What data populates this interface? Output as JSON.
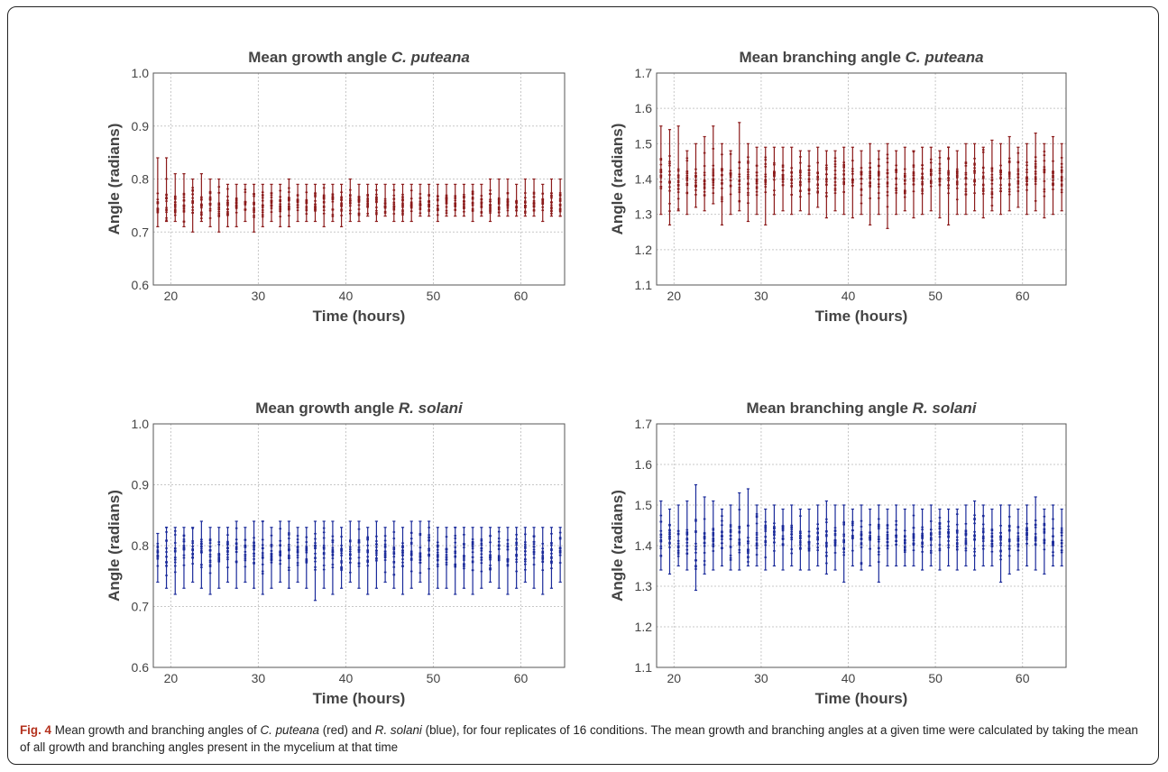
{
  "chart_data": [
    {
      "type": "scatter",
      "title_prefix": "Mean growth angle",
      "title_species": "C. puteana",
      "xlabel": "Time (hours)",
      "ylabel": "Angle (radians)",
      "xlim": [
        18,
        65
      ],
      "ylim": [
        0.6,
        1.0
      ],
      "xticks": [
        20,
        30,
        40,
        50,
        60
      ],
      "yticks": [
        "0.6",
        "0.7",
        "0.8",
        "0.9",
        "1.0"
      ],
      "grid": true,
      "color": "#8b1a1a",
      "x": [
        18.5,
        19.5,
        20.5,
        21.5,
        22.5,
        23.5,
        24.5,
        25.5,
        26.5,
        27.5,
        28.5,
        29.5,
        30.5,
        31.5,
        32.5,
        33.5,
        34.5,
        35.5,
        36.5,
        37.5,
        38.5,
        39.5,
        40.5,
        41.5,
        42.5,
        43.5,
        44.5,
        45.5,
        46.5,
        47.5,
        48.5,
        49.5,
        50.5,
        51.5,
        52.5,
        53.5,
        54.5,
        55.5,
        56.5,
        57.5,
        58.5,
        59.5,
        60.5,
        61.5,
        62.5,
        63.5,
        64.5
      ],
      "low": [
        0.71,
        0.72,
        0.72,
        0.71,
        0.7,
        0.72,
        0.71,
        0.7,
        0.71,
        0.71,
        0.72,
        0.7,
        0.71,
        0.72,
        0.71,
        0.71,
        0.72,
        0.72,
        0.72,
        0.71,
        0.72,
        0.71,
        0.72,
        0.72,
        0.73,
        0.72,
        0.73,
        0.72,
        0.72,
        0.72,
        0.73,
        0.73,
        0.72,
        0.73,
        0.73,
        0.73,
        0.72,
        0.73,
        0.72,
        0.73,
        0.73,
        0.73,
        0.73,
        0.73,
        0.72,
        0.73,
        0.73
      ],
      "high": [
        0.84,
        0.84,
        0.81,
        0.81,
        0.8,
        0.81,
        0.8,
        0.8,
        0.79,
        0.79,
        0.79,
        0.79,
        0.79,
        0.79,
        0.79,
        0.8,
        0.79,
        0.79,
        0.79,
        0.79,
        0.79,
        0.79,
        0.8,
        0.79,
        0.79,
        0.79,
        0.79,
        0.79,
        0.79,
        0.79,
        0.79,
        0.79,
        0.79,
        0.79,
        0.79,
        0.79,
        0.79,
        0.79,
        0.8,
        0.8,
        0.8,
        0.79,
        0.8,
        0.8,
        0.79,
        0.8,
        0.8
      ],
      "mean": 0.755
    },
    {
      "type": "scatter",
      "title_prefix": "Mean branching angle",
      "title_species": "C. puteana",
      "xlabel": "Time (hours)",
      "ylabel": "Angle (radians)",
      "xlim": [
        18,
        65
      ],
      "ylim": [
        1.1,
        1.7
      ],
      "xticks": [
        20,
        30,
        40,
        50,
        60
      ],
      "yticks": [
        "1.1",
        "1.2",
        "1.3",
        "1.4",
        "1.5",
        "1.6",
        "1.7"
      ],
      "grid": true,
      "color": "#8b1a1a",
      "x": [
        18.5,
        19.5,
        20.5,
        21.5,
        22.5,
        23.5,
        24.5,
        25.5,
        26.5,
        27.5,
        28.5,
        29.5,
        30.5,
        31.5,
        32.5,
        33.5,
        34.5,
        35.5,
        36.5,
        37.5,
        38.5,
        39.5,
        40.5,
        41.5,
        42.5,
        43.5,
        44.5,
        45.5,
        46.5,
        47.5,
        48.5,
        49.5,
        50.5,
        51.5,
        52.5,
        53.5,
        54.5,
        55.5,
        56.5,
        57.5,
        58.5,
        59.5,
        60.5,
        61.5,
        62.5,
        63.5,
        64.5
      ],
      "low": [
        1.3,
        1.27,
        1.31,
        1.3,
        1.32,
        1.31,
        1.33,
        1.27,
        1.3,
        1.31,
        1.28,
        1.3,
        1.27,
        1.3,
        1.31,
        1.3,
        1.31,
        1.3,
        1.32,
        1.29,
        1.31,
        1.3,
        1.29,
        1.3,
        1.27,
        1.3,
        1.26,
        1.3,
        1.31,
        1.29,
        1.3,
        1.31,
        1.29,
        1.27,
        1.3,
        1.3,
        1.31,
        1.29,
        1.31,
        1.3,
        1.31,
        1.32,
        1.3,
        1.31,
        1.29,
        1.3,
        1.31
      ],
      "high": [
        1.55,
        1.54,
        1.55,
        1.48,
        1.5,
        1.52,
        1.55,
        1.5,
        1.48,
        1.56,
        1.5,
        1.49,
        1.49,
        1.49,
        1.49,
        1.49,
        1.48,
        1.48,
        1.49,
        1.48,
        1.48,
        1.49,
        1.49,
        1.48,
        1.5,
        1.48,
        1.5,
        1.48,
        1.49,
        1.48,
        1.49,
        1.49,
        1.48,
        1.49,
        1.48,
        1.5,
        1.5,
        1.49,
        1.51,
        1.5,
        1.52,
        1.49,
        1.5,
        1.53,
        1.5,
        1.52,
        1.5
      ],
      "mean": 1.405
    },
    {
      "type": "scatter",
      "title_prefix": "Mean growth angle",
      "title_species": "R. solani",
      "xlabel": "Time (hours)",
      "ylabel": "Angle (radians)",
      "xlim": [
        18,
        65
      ],
      "ylim": [
        0.6,
        1.0
      ],
      "xticks": [
        20,
        30,
        40,
        50,
        60
      ],
      "yticks": [
        "0.6",
        "0.7",
        "0.8",
        "0.9",
        "1.0"
      ],
      "grid": true,
      "color": "#1a2a9a",
      "x": [
        18.5,
        19.5,
        20.5,
        21.5,
        22.5,
        23.5,
        24.5,
        25.5,
        26.5,
        27.5,
        28.5,
        29.5,
        30.5,
        31.5,
        32.5,
        33.5,
        34.5,
        35.5,
        36.5,
        37.5,
        38.5,
        39.5,
        40.5,
        41.5,
        42.5,
        43.5,
        44.5,
        45.5,
        46.5,
        47.5,
        48.5,
        49.5,
        50.5,
        51.5,
        52.5,
        53.5,
        54.5,
        55.5,
        56.5,
        57.5,
        58.5,
        59.5,
        60.5,
        61.5,
        62.5,
        63.5,
        64.5
      ],
      "low": [
        0.74,
        0.73,
        0.72,
        0.73,
        0.74,
        0.73,
        0.72,
        0.73,
        0.74,
        0.73,
        0.74,
        0.73,
        0.72,
        0.73,
        0.74,
        0.73,
        0.74,
        0.73,
        0.71,
        0.73,
        0.72,
        0.73,
        0.74,
        0.73,
        0.72,
        0.73,
        0.74,
        0.73,
        0.72,
        0.73,
        0.74,
        0.72,
        0.73,
        0.73,
        0.72,
        0.73,
        0.72,
        0.73,
        0.74,
        0.73,
        0.72,
        0.73,
        0.74,
        0.73,
        0.72,
        0.73,
        0.74
      ],
      "high": [
        0.82,
        0.83,
        0.83,
        0.83,
        0.83,
        0.84,
        0.83,
        0.83,
        0.83,
        0.84,
        0.83,
        0.84,
        0.84,
        0.83,
        0.84,
        0.84,
        0.83,
        0.83,
        0.84,
        0.84,
        0.84,
        0.83,
        0.84,
        0.84,
        0.83,
        0.84,
        0.83,
        0.84,
        0.83,
        0.84,
        0.84,
        0.84,
        0.83,
        0.83,
        0.83,
        0.83,
        0.83,
        0.83,
        0.83,
        0.83,
        0.83,
        0.83,
        0.83,
        0.83,
        0.83,
        0.83,
        0.83
      ],
      "mean": 0.79
    },
    {
      "type": "scatter",
      "title_prefix": "Mean branching angle",
      "title_species": "R. solani",
      "xlabel": "Time (hours)",
      "ylabel": "Angle (radians)",
      "xlim": [
        18,
        65
      ],
      "ylim": [
        1.1,
        1.7
      ],
      "xticks": [
        20,
        30,
        40,
        50,
        60
      ],
      "yticks": [
        "1.1",
        "1.2",
        "1.3",
        "1.4",
        "1.5",
        "1.6",
        "1.7"
      ],
      "grid": true,
      "color": "#1a2a9a",
      "x": [
        18.5,
        19.5,
        20.5,
        21.5,
        22.5,
        23.5,
        24.5,
        25.5,
        26.5,
        27.5,
        28.5,
        29.5,
        30.5,
        31.5,
        32.5,
        33.5,
        34.5,
        35.5,
        36.5,
        37.5,
        38.5,
        39.5,
        40.5,
        41.5,
        42.5,
        43.5,
        44.5,
        45.5,
        46.5,
        47.5,
        48.5,
        49.5,
        50.5,
        51.5,
        52.5,
        53.5,
        54.5,
        55.5,
        56.5,
        57.5,
        58.5,
        59.5,
        60.5,
        61.5,
        62.5,
        63.5,
        64.5
      ],
      "low": [
        1.34,
        1.33,
        1.35,
        1.34,
        1.29,
        1.33,
        1.34,
        1.35,
        1.34,
        1.34,
        1.35,
        1.35,
        1.34,
        1.35,
        1.34,
        1.35,
        1.34,
        1.34,
        1.35,
        1.33,
        1.34,
        1.31,
        1.35,
        1.34,
        1.35,
        1.31,
        1.35,
        1.35,
        1.35,
        1.35,
        1.34,
        1.35,
        1.34,
        1.35,
        1.34,
        1.35,
        1.34,
        1.35,
        1.35,
        1.31,
        1.33,
        1.34,
        1.35,
        1.34,
        1.33,
        1.35,
        1.35
      ],
      "high": [
        1.51,
        1.49,
        1.5,
        1.51,
        1.55,
        1.52,
        1.51,
        1.49,
        1.5,
        1.53,
        1.54,
        1.5,
        1.49,
        1.5,
        1.49,
        1.5,
        1.49,
        1.49,
        1.5,
        1.51,
        1.5,
        1.5,
        1.49,
        1.5,
        1.49,
        1.5,
        1.49,
        1.5,
        1.49,
        1.5,
        1.49,
        1.5,
        1.49,
        1.49,
        1.49,
        1.5,
        1.51,
        1.5,
        1.49,
        1.5,
        1.5,
        1.49,
        1.5,
        1.52,
        1.49,
        1.5,
        1.49
      ],
      "mean": 1.42
    }
  ],
  "caption": {
    "fig_label": "Fig. 4",
    "text_1": " Mean growth and branching angles of ",
    "species_1": "C. puteana",
    "text_2": " (red) and ",
    "species_2": "R. solani",
    "text_3": " (blue), for four replicates of 16 conditions. The mean growth and branching angles at a given time were calculated by taking the mean of all growth and branching angles present in the mycelium at that time"
  }
}
